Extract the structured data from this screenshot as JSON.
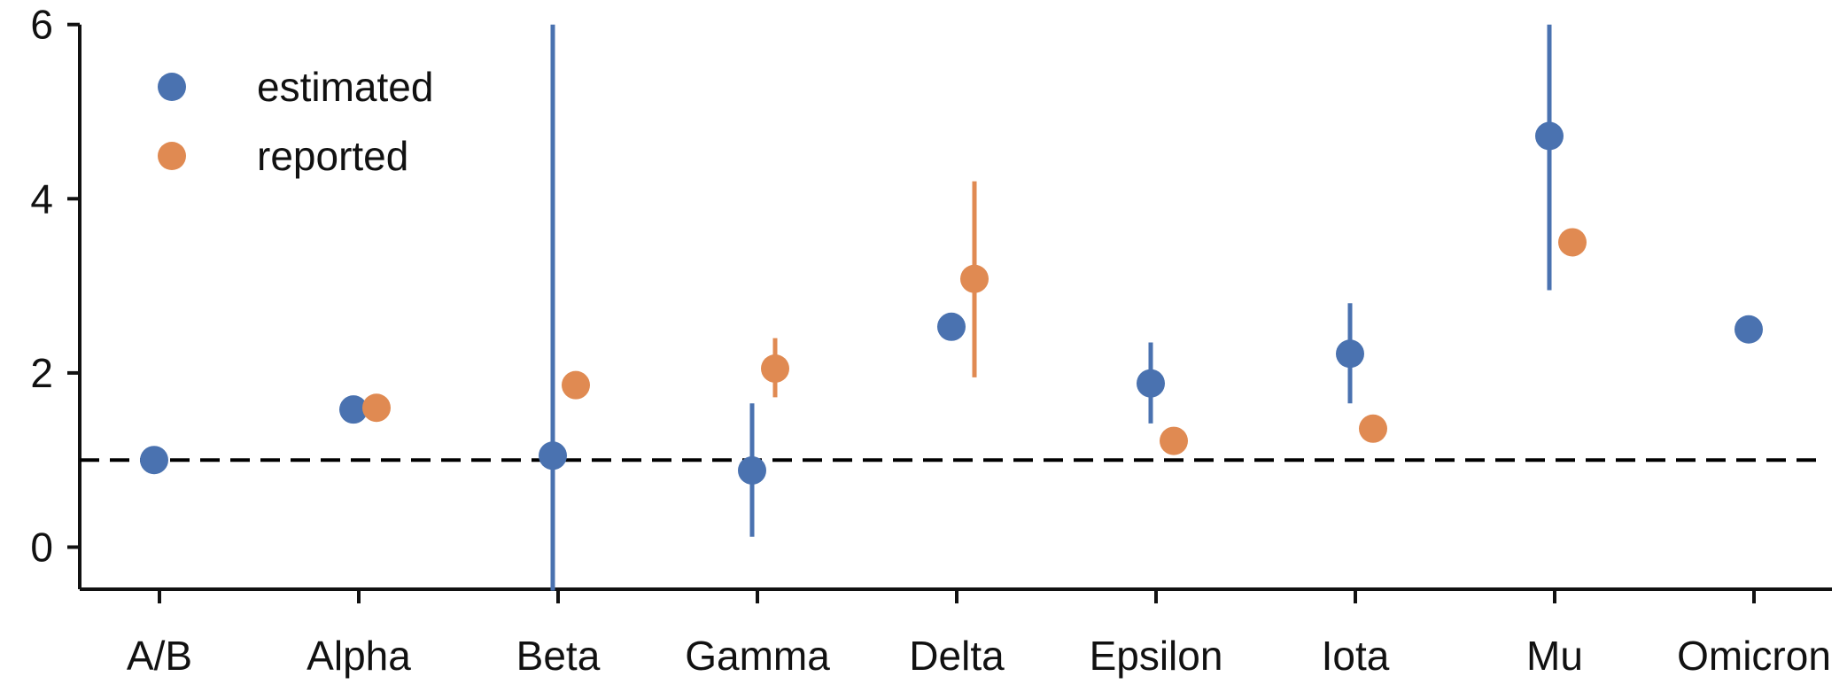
{
  "chart_data": {
    "type": "scatter",
    "categories": [
      "A/B",
      "Alpha",
      "Beta",
      "Gamma",
      "Delta",
      "Epsilon",
      "Iota",
      "Mu",
      "Omicron"
    ],
    "ylim": [
      -0.5,
      6.0
    ],
    "yticks": [
      0,
      2,
      4,
      6
    ],
    "reference_line": {
      "y": 1.0,
      "style": "dashed",
      "color": "#000000"
    },
    "grid": false,
    "legend": {
      "position": "top-left"
    },
    "series": [
      {
        "name": "estimated",
        "color": "#4a72b0",
        "points": [
          {
            "category": "A/B",
            "y": 1.0,
            "err_low": null,
            "err_high": null
          },
          {
            "category": "Alpha",
            "y": 1.58,
            "err_low": null,
            "err_high": null
          },
          {
            "category": "Beta",
            "y": 1.05,
            "err_low": -0.5,
            "err_high": 6.0
          },
          {
            "category": "Gamma",
            "y": 0.88,
            "err_low": 0.12,
            "err_high": 1.65
          },
          {
            "category": "Delta",
            "y": 2.53,
            "err_low": null,
            "err_high": null
          },
          {
            "category": "Epsilon",
            "y": 1.88,
            "err_low": 1.42,
            "err_high": 2.35
          },
          {
            "category": "Iota",
            "y": 2.22,
            "err_low": 1.65,
            "err_high": 2.8
          },
          {
            "category": "Mu",
            "y": 4.72,
            "err_low": 2.95,
            "err_high": 6.0
          },
          {
            "category": "Omicron",
            "y": 2.5,
            "err_low": null,
            "err_high": null
          }
        ]
      },
      {
        "name": "reported",
        "color": "#e08a52",
        "points": [
          {
            "category": "Alpha",
            "y": 1.6,
            "err_low": null,
            "err_high": null
          },
          {
            "category": "Beta",
            "y": 1.86,
            "err_low": null,
            "err_high": null
          },
          {
            "category": "Gamma",
            "y": 2.05,
            "err_low": 1.72,
            "err_high": 2.4
          },
          {
            "category": "Delta",
            "y": 3.08,
            "err_low": 1.95,
            "err_high": 4.2
          },
          {
            "category": "Epsilon",
            "y": 1.22,
            "err_low": null,
            "err_high": null
          },
          {
            "category": "Iota",
            "y": 1.36,
            "err_low": null,
            "err_high": null
          },
          {
            "category": "Mu",
            "y": 3.5,
            "err_low": null,
            "err_high": null
          }
        ]
      }
    ]
  }
}
